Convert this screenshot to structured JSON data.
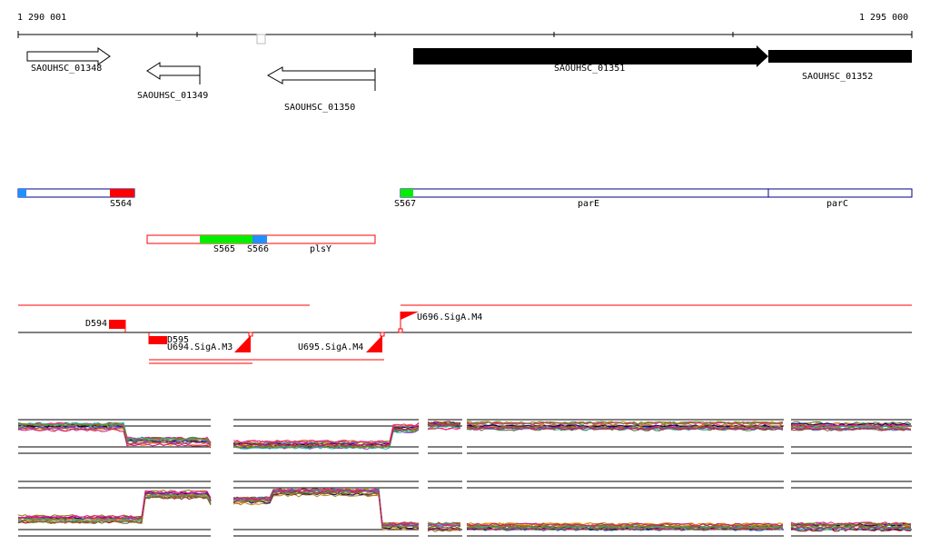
{
  "ruler": {
    "start_label": "1 290 001",
    "end_label": "1 295 000"
  },
  "genes": [
    {
      "id": "SAOUHSC_01348",
      "strand": "+",
      "style": "open"
    },
    {
      "id": "SAOUHSC_01349",
      "strand": "-",
      "style": "open"
    },
    {
      "id": "SAOUHSC_01350",
      "strand": "-",
      "style": "open"
    },
    {
      "id": "SAOUHSC_01351",
      "strand": "+",
      "style": "filled"
    },
    {
      "id": "SAOUHSC_01352",
      "strand": "+",
      "style": "filled"
    }
  ],
  "segments": {
    "s564": "S564",
    "s565": "S565",
    "s566": "S566",
    "s567": "S567",
    "parE": "parE",
    "parC": "parC",
    "plsY": "plsY"
  },
  "features": {
    "d594": "D594",
    "d595": "D595",
    "u694": "U694.SigA.M3",
    "u695": "U695.SigA.M4",
    "u696": "U696.SigA.M4"
  },
  "colors": {
    "red": "#ff0000",
    "green": "#00ee00",
    "blue": "#1e90ff",
    "plus_strand_outline": "#00008b",
    "minus_strand_outline": "#ff0000"
  },
  "expression_tracks": [
    "plus-strand-expression",
    "minus-strand-expression"
  ]
}
